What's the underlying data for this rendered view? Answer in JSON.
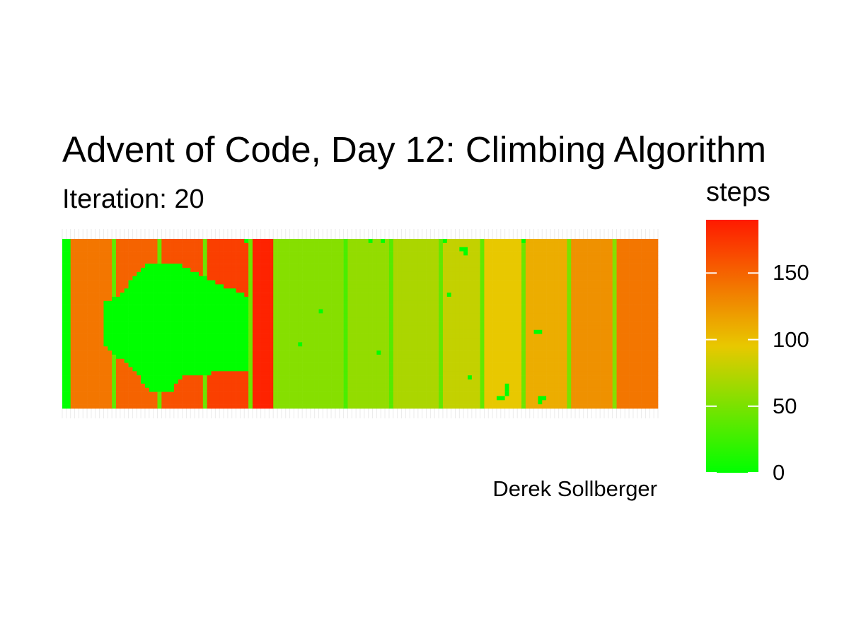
{
  "chart_data": {
    "type": "heatmap",
    "title": "Advent of Code, Day 12: Climbing Algorithm",
    "subtitle": "Iteration: 20",
    "caption": "Derek Sollberger",
    "xlabel": "",
    "ylabel": "",
    "grid": true,
    "legend": {
      "title": "steps",
      "placement": "right",
      "range": [
        0,
        190
      ],
      "ticks": [
        0,
        50,
        100,
        150
      ],
      "tick_labels": [
        "0",
        "50",
        "100",
        "150"
      ],
      "low_color": "#00ff00",
      "high_color": "#ff1a00"
    },
    "grid_size": {
      "columns": 144,
      "rows": 41
    },
    "column_profile": {
      "description": "approximate steps value per column band (left to right)",
      "bands": [
        {
          "from_col": 0,
          "to_col": 1,
          "steps": 0
        },
        {
          "from_col": 2,
          "to_col": 11,
          "steps": 140
        },
        {
          "from_col": 12,
          "to_col": 12,
          "steps": 40
        },
        {
          "from_col": 13,
          "to_col": 22,
          "steps": 150
        },
        {
          "from_col": 23,
          "to_col": 23,
          "steps": 40
        },
        {
          "from_col": 24,
          "to_col": 33,
          "steps": 160
        },
        {
          "from_col": 34,
          "to_col": 34,
          "steps": 45
        },
        {
          "from_col": 35,
          "to_col": 44,
          "steps": 170
        },
        {
          "from_col": 45,
          "to_col": 45,
          "steps": 45
        },
        {
          "from_col": 46,
          "to_col": 50,
          "steps": 185
        },
        {
          "from_col": 51,
          "to_col": 67,
          "steps": 55
        },
        {
          "from_col": 68,
          "to_col": 68,
          "steps": 30
        },
        {
          "from_col": 69,
          "to_col": 78,
          "steps": 60
        },
        {
          "from_col": 79,
          "to_col": 79,
          "steps": 35
        },
        {
          "from_col": 80,
          "to_col": 90,
          "steps": 70
        },
        {
          "from_col": 91,
          "to_col": 91,
          "steps": 40
        },
        {
          "from_col": 92,
          "to_col": 100,
          "steps": 80
        },
        {
          "from_col": 101,
          "to_col": 101,
          "steps": 40
        },
        {
          "from_col": 102,
          "to_col": 110,
          "steps": 95
        },
        {
          "from_col": 111,
          "to_col": 111,
          "steps": 45
        },
        {
          "from_col": 112,
          "to_col": 121,
          "steps": 110
        },
        {
          "from_col": 122,
          "to_col": 122,
          "steps": 50
        },
        {
          "from_col": 123,
          "to_col": 132,
          "steps": 125
        },
        {
          "from_col": 133,
          "to_col": 133,
          "steps": 55
        },
        {
          "from_col": 134,
          "to_col": 143,
          "steps": 140
        }
      ]
    },
    "zero_region": {
      "description": "explored region reset to 0 steps (row span per column)",
      "columns": [
        {
          "col": 10,
          "rows": [
            15,
            25
          ]
        },
        {
          "col": 11,
          "rows": [
            15,
            26
          ]
        },
        {
          "col": 12,
          "rows": [
            14,
            27
          ]
        },
        {
          "col": 13,
          "rows": [
            14,
            28
          ]
        },
        {
          "col": 14,
          "rows": [
            13,
            28
          ]
        },
        {
          "col": 15,
          "rows": [
            12,
            29
          ]
        },
        {
          "col": 16,
          "rows": [
            10,
            30
          ]
        },
        {
          "col": 17,
          "rows": [
            9,
            31
          ]
        },
        {
          "col": 18,
          "rows": [
            8,
            32
          ]
        },
        {
          "col": 19,
          "rows": [
            7,
            34
          ]
        },
        {
          "col": 20,
          "rows": [
            6,
            35
          ]
        },
        {
          "col": 21,
          "rows": [
            6,
            36
          ]
        },
        {
          "col": 22,
          "rows": [
            6,
            36
          ]
        },
        {
          "col": 23,
          "rows": [
            6,
            36
          ]
        },
        {
          "col": 24,
          "rows": [
            6,
            36
          ]
        },
        {
          "col": 25,
          "rows": [
            6,
            36
          ]
        },
        {
          "col": 26,
          "rows": [
            6,
            36
          ]
        },
        {
          "col": 27,
          "rows": [
            6,
            34
          ]
        },
        {
          "col": 28,
          "rows": [
            6,
            33
          ]
        },
        {
          "col": 29,
          "rows": [
            7,
            32
          ]
        },
        {
          "col": 30,
          "rows": [
            7,
            32
          ]
        },
        {
          "col": 31,
          "rows": [
            8,
            32
          ]
        },
        {
          "col": 32,
          "rows": [
            8,
            32
          ]
        },
        {
          "col": 33,
          "rows": [
            9,
            32
          ]
        },
        {
          "col": 34,
          "rows": [
            9,
            32
          ]
        },
        {
          "col": 35,
          "rows": [
            10,
            32
          ]
        },
        {
          "col": 36,
          "rows": [
            10,
            31
          ]
        },
        {
          "col": 37,
          "rows": [
            11,
            31
          ]
        },
        {
          "col": 38,
          "rows": [
            11,
            31
          ]
        },
        {
          "col": 39,
          "rows": [
            12,
            31
          ]
        },
        {
          "col": 40,
          "rows": [
            12,
            31
          ]
        },
        {
          "col": 41,
          "rows": [
            12,
            31
          ]
        },
        {
          "col": 42,
          "rows": [
            13,
            31
          ]
        },
        {
          "col": 43,
          "rows": [
            13,
            31
          ]
        },
        {
          "col": 44,
          "rows": [
            14,
            31
          ]
        }
      ]
    },
    "zero_points": [
      [
        44,
        0
      ],
      [
        74,
        0
      ],
      [
        77,
        0
      ],
      [
        92,
        0
      ],
      [
        96,
        2
      ],
      [
        97,
        2
      ],
      [
        97,
        3
      ],
      [
        111,
        0
      ],
      [
        93,
        13
      ],
      [
        62,
        17
      ],
      [
        114,
        22
      ],
      [
        115,
        22
      ],
      [
        57,
        25
      ],
      [
        76,
        27
      ],
      [
        98,
        33
      ],
      [
        107,
        35
      ],
      [
        107,
        36
      ],
      [
        107,
        37
      ],
      [
        106,
        38
      ],
      [
        105,
        38
      ],
      [
        115,
        38
      ],
      [
        116,
        38
      ],
      [
        115,
        39
      ]
    ]
  }
}
